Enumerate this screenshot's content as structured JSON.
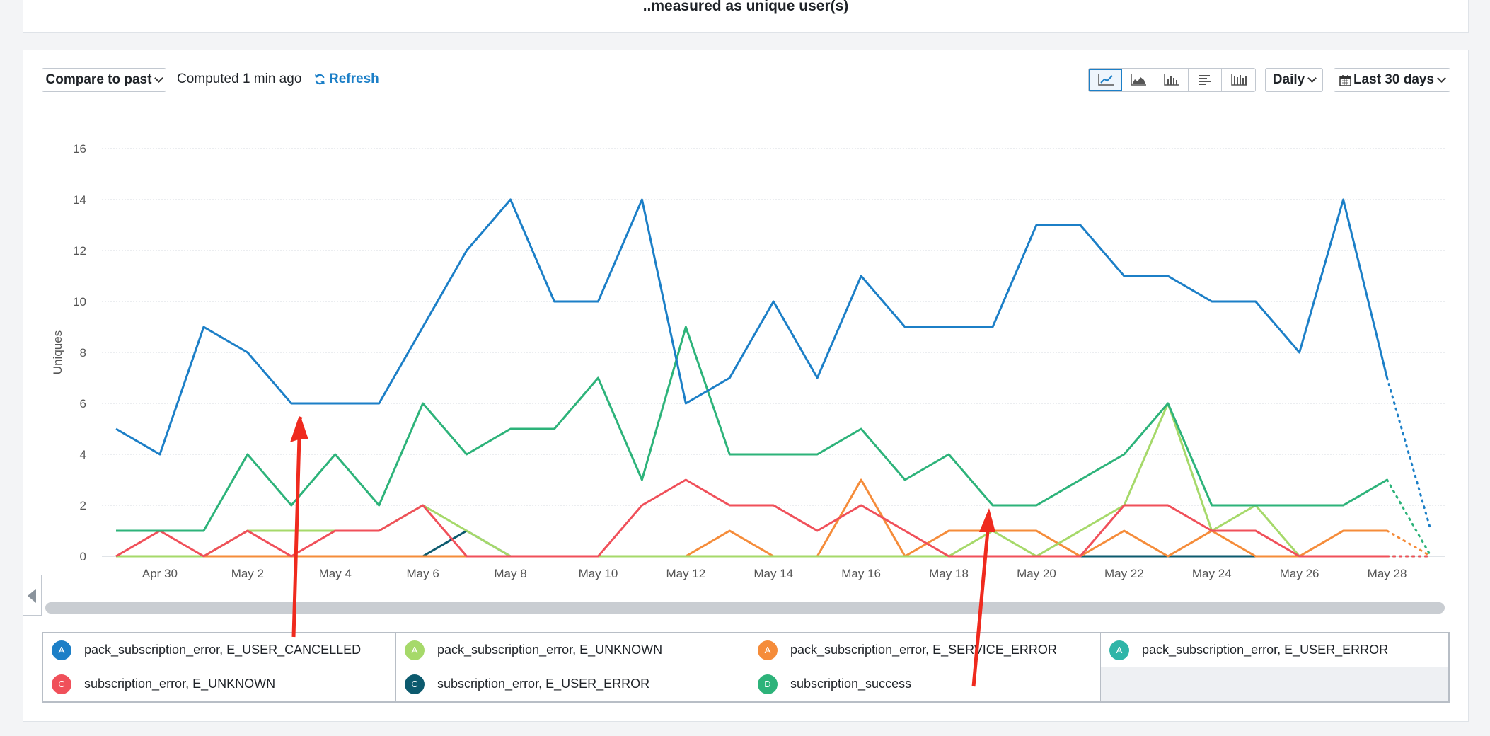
{
  "header": {
    "caption": "..measured as unique user(s)"
  },
  "toolbar": {
    "compare_label": "Compare to past",
    "computed_text": "Computed 1 min ago",
    "refresh_label": "Refresh",
    "chart_types": [
      "line-chart-icon",
      "area-chart-icon",
      "bar-chart-icon",
      "horizontal-bar-icon",
      "stacked-bar-icon"
    ],
    "interval_label": "Daily",
    "range_label": "Last 30 days"
  },
  "legend": [
    {
      "letter": "A",
      "label": "pack_subscription_error, E_USER_CANCELLED",
      "color": "#1c7fc7"
    },
    {
      "letter": "A",
      "label": "pack_subscription_error, E_UNKNOWN",
      "color": "#a6d96a"
    },
    {
      "letter": "A",
      "label": "pack_subscription_error, E_SERVICE_ERROR",
      "color": "#f58c3a"
    },
    {
      "letter": "A",
      "label": "pack_subscription_error, E_USER_ERROR",
      "color": "#2fb5a8"
    },
    {
      "letter": "C",
      "label": "subscription_error, E_UNKNOWN",
      "color": "#f0505a"
    },
    {
      "letter": "C",
      "label": "subscription_error, E_USER_ERROR",
      "color": "#0c5a6e"
    },
    {
      "letter": "D",
      "label": "subscription_success",
      "color": "#2db37a"
    }
  ],
  "chart_data": {
    "type": "line",
    "ylabel": "Uniques",
    "ylim": [
      0,
      16
    ],
    "yticks": [
      0,
      2,
      4,
      6,
      8,
      10,
      12,
      14,
      16
    ],
    "x": [
      "Apr 29",
      "Apr 30",
      "May 1",
      "May 2",
      "May 3",
      "May 4",
      "May 5",
      "May 6",
      "May 7",
      "May 8",
      "May 9",
      "May 10",
      "May 11",
      "May 12",
      "May 13",
      "May 14",
      "May 15",
      "May 16",
      "May 17",
      "May 18",
      "May 19",
      "May 20",
      "May 21",
      "May 22",
      "May 23",
      "May 24",
      "May 25",
      "May 26",
      "May 27",
      "May 28",
      "May 29"
    ],
    "xtick_labels": [
      "Apr 30",
      "May 2",
      "May 4",
      "May 6",
      "May 8",
      "May 10",
      "May 12",
      "May 14",
      "May 16",
      "May 18",
      "May 20",
      "May 22",
      "May 24",
      "May 26",
      "May 28"
    ],
    "solid_until_index": 29,
    "series": [
      {
        "name": "pack_subscription_error, E_USER_CANCELLED",
        "color": "#1c7fc7",
        "values": [
          5,
          4,
          9,
          8,
          6,
          6,
          6,
          9,
          12,
          14,
          10,
          10,
          14,
          6,
          7,
          10,
          7,
          11,
          9,
          9,
          9,
          13,
          13,
          11,
          11,
          10,
          10,
          8,
          14,
          7,
          1
        ]
      },
      {
        "name": "pack_subscription_error, E_UNKNOWN",
        "color": "#a6d96a",
        "values": [
          0,
          0,
          0,
          1,
          1,
          1,
          1,
          2,
          1,
          0,
          0,
          0,
          0,
          0,
          0,
          0,
          0,
          0,
          0,
          0,
          1,
          0,
          1,
          2,
          6,
          1,
          2,
          0,
          0,
          0,
          0
        ]
      },
      {
        "name": "pack_subscription_error, E_SERVICE_ERROR",
        "color": "#f58c3a",
        "values": [
          0,
          0,
          0,
          0,
          0,
          0,
          0,
          0,
          0,
          0,
          0,
          0,
          0,
          0,
          1,
          0,
          0,
          3,
          0,
          1,
          1,
          1,
          0,
          1,
          0,
          1,
          0,
          0,
          1,
          1,
          0
        ]
      },
      {
        "name": "pack_subscription_error, E_USER_ERROR",
        "color": "#2fb5a8",
        "values": [
          0,
          0,
          0,
          0,
          0,
          0,
          0,
          0,
          0,
          0,
          0,
          0,
          0,
          0,
          0,
          0,
          0,
          0,
          0,
          0,
          0,
          0,
          0,
          0,
          0,
          0,
          0,
          0,
          0,
          0,
          0
        ]
      },
      {
        "name": "subscription_error, E_UNKNOWN",
        "color": "#f0505a",
        "values": [
          0,
          1,
          0,
          1,
          0,
          1,
          1,
          2,
          0,
          0,
          0,
          0,
          2,
          3,
          2,
          2,
          1,
          2,
          1,
          0,
          0,
          0,
          0,
          2,
          2,
          1,
          1,
          0,
          0,
          0,
          0
        ]
      },
      {
        "name": "subscription_error, E_USER_ERROR",
        "color": "#0c5a6e",
        "values": [
          0,
          0,
          0,
          0,
          0,
          0,
          0,
          0,
          1,
          0,
          0,
          0,
          0,
          0,
          0,
          0,
          0,
          0,
          0,
          0,
          0,
          0,
          0,
          0,
          0,
          0,
          0,
          0,
          0,
          0,
          0
        ]
      },
      {
        "name": "subscription_success",
        "color": "#2db37a",
        "values": [
          1,
          1,
          1,
          4,
          2,
          4,
          2,
          6,
          4,
          5,
          5,
          7,
          3,
          9,
          4,
          4,
          4,
          5,
          3,
          4,
          2,
          2,
          3,
          4,
          6,
          2,
          2,
          2,
          2,
          3,
          0
        ]
      }
    ]
  }
}
